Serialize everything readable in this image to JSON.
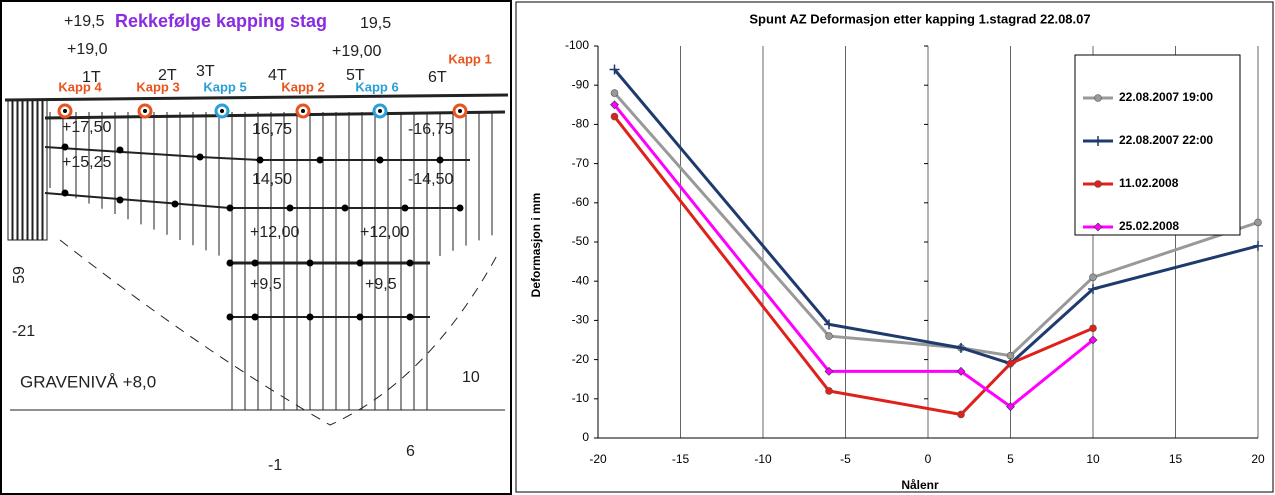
{
  "drawing": {
    "title": "Rekkefølge kapping stag",
    "labels": [
      "+19,5",
      "19,5",
      "+19,0",
      "+19,00",
      "1T",
      "2T",
      "3T",
      "4T",
      "5T",
      "6T",
      "+17,50",
      "16,75",
      "-16,75",
      "+15,25",
      "14,50",
      "-14,50",
      "+12,00",
      "+12,00",
      "+9,5",
      "+9,5",
      "59",
      "-21",
      "GRAVENIVÅ +8,0",
      "10",
      "6",
      "-1"
    ],
    "kapp": [
      {
        "label": "Kapp 1",
        "color": "#e8541e"
      },
      {
        "label": "Kapp 2",
        "color": "#e8541e"
      },
      {
        "label": "Kapp 3",
        "color": "#e8541e"
      },
      {
        "label": "Kapp 4",
        "color": "#e8541e"
      },
      {
        "label": "Kapp 5",
        "color": "#2a9fd8"
      },
      {
        "label": "Kapp 6",
        "color": "#2a9fd8"
      }
    ]
  },
  "chart_data": {
    "type": "line",
    "title": "Spunt AZ Deformasjon etter kapping 1.stagrad 22.08.07",
    "x_label": "Nålenr",
    "y_label": "Deformasjon i mm",
    "xlim": [
      -20,
      20
    ],
    "xticks": [
      -20,
      -15,
      -10,
      -5,
      0,
      5,
      10,
      15,
      20
    ],
    "ylim": [
      0,
      -100
    ],
    "yticks": [
      0,
      -10,
      -20,
      -30,
      -40,
      -50,
      -60,
      -70,
      -80,
      -90,
      -100
    ],
    "grid": "x",
    "legend": "upper right",
    "series": [
      {
        "name": "22.08.2007 19:00",
        "color": "#999999",
        "marker": "circle",
        "x": [
          -19,
          -6,
          2,
          5,
          10,
          20
        ],
        "values": [
          -88,
          -26,
          -23,
          -21,
          -41,
          -55
        ]
      },
      {
        "name": "22.08.2007 22:00",
        "color": "#1f3a6e",
        "marker": "plus",
        "x": [
          -19,
          -6,
          2,
          5,
          10,
          20
        ],
        "values": [
          -94,
          -29,
          -23,
          -19,
          -38,
          -49
        ]
      },
      {
        "name": "11.02.2008",
        "color": "#e0201a",
        "marker": "circle",
        "x": [
          -19,
          -6,
          2,
          5,
          10
        ],
        "values": [
          -82,
          -12,
          -6,
          -19,
          -28
        ]
      },
      {
        "name": "25.02.2008",
        "color": "#ff00ff",
        "marker": "diamond",
        "x": [
          -19,
          -6,
          2,
          5,
          10
        ],
        "values": [
          -85,
          -17,
          -17,
          -8,
          -25
        ]
      }
    ]
  }
}
